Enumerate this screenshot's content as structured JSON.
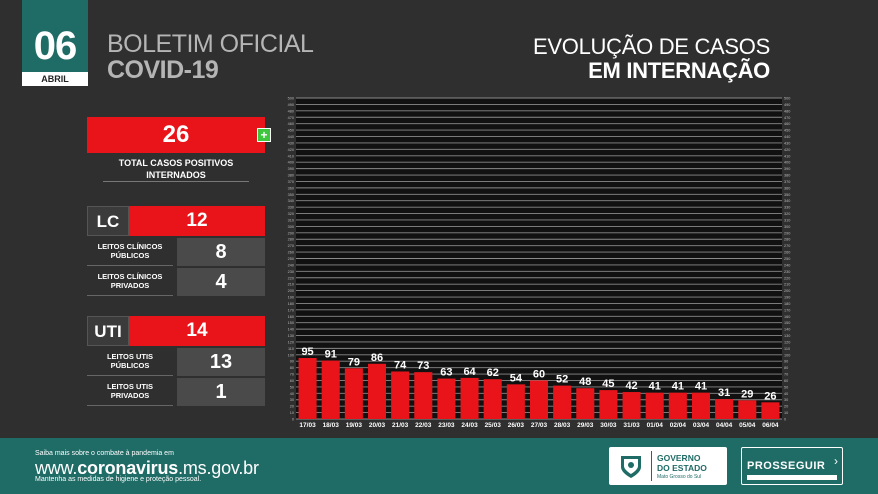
{
  "header": {
    "day": "06",
    "month": "ABRIL",
    "bulletin_line1": "BOLETIM OFICIAL",
    "bulletin_line2": "COVID-19"
  },
  "summary": {
    "total": "26",
    "total_label_line1": "TOTAL CASOS POSITIVOS",
    "total_label_line2": "INTERNADOS",
    "lc": {
      "code": "LC",
      "value": "12",
      "public_label_line1": "LEITOS CLÍNICOS",
      "public_label_line2": "PÚBLICOS",
      "public_value": "8",
      "private_label_line1": "LEITOS CLÍNICOS",
      "private_label_line2": "PRIVADOS",
      "private_value": "4"
    },
    "uti": {
      "code": "UTI",
      "value": "14",
      "public_label_line1": "LEITOS UTIs",
      "public_label_line2": "PÚBLICOS",
      "public_value": "13",
      "private_label_line1": "LEITOS UTIs",
      "private_label_line2": "PRIVADOS",
      "private_value": "1"
    }
  },
  "chart_data": {
    "type": "bar",
    "title_line1": "EVOLUÇÃO DE CASOS",
    "title_line2": "EM INTERNAÇÃO",
    "categories": [
      "17/03",
      "18/03",
      "19/03",
      "20/03",
      "21/03",
      "22/03",
      "23/03",
      "24/03",
      "25/03",
      "26/03",
      "27/03",
      "28/03",
      "29/03",
      "30/03",
      "31/03",
      "01/04",
      "02/04",
      "03/04",
      "04/04",
      "05/04",
      "06/04"
    ],
    "values": [
      95,
      91,
      79,
      86,
      74,
      73,
      63,
      64,
      62,
      54,
      60,
      52,
      48,
      45,
      42,
      41,
      41,
      41,
      31,
      29,
      26
    ],
    "ylim": [
      0,
      500
    ],
    "ytick_step": 10,
    "grid": true,
    "bar_color": "#e8141a",
    "plot_bg": "#111111",
    "grid_color": "#8a8a8a"
  },
  "footer": {
    "small_line": "Saiba mais sobre o combate à pandemia em",
    "url_prefix": "www.",
    "url_bold": "coronavirus",
    "url_suffix": ".ms.gov.br",
    "small_line2": "Mantenha as medidas de higiene e proteção pessoal.",
    "gov_line1": "GOVERNO",
    "gov_line2": "DO ESTADO",
    "gov_sub": "Mato Grosso do Sul",
    "prosseguir": "PROSSEGUIR"
  },
  "colors": {
    "accent": "#1f6b66",
    "red": "#e8141a",
    "background": "#2f2f2f"
  }
}
